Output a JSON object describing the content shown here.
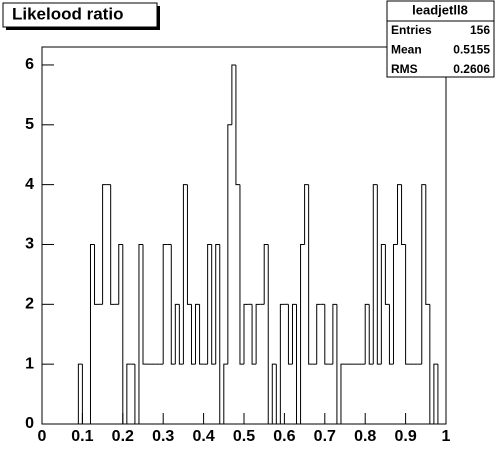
{
  "chart_data": {
    "type": "histogram",
    "title": "Likelood ratio",
    "stats": {
      "name": "leadjetll8",
      "rows": [
        {
          "label": "Entries",
          "value": 156
        },
        {
          "label": "Mean",
          "value": 0.5155
        },
        {
          "label": "RMS",
          "value": 0.2606
        }
      ]
    },
    "bins": [
      0,
      0.01,
      0.02,
      0.03,
      0.04,
      0.05,
      0.06,
      0.07,
      0.08,
      0.09,
      0.1,
      0.11,
      0.12,
      0.13,
      0.14,
      0.15,
      0.16,
      0.17,
      0.18,
      0.19,
      0.2,
      0.21,
      0.22,
      0.23,
      0.24,
      0.25,
      0.26,
      0.27,
      0.28,
      0.29,
      0.3,
      0.31,
      0.32,
      0.33,
      0.34,
      0.35,
      0.36,
      0.37,
      0.38,
      0.39,
      0.4,
      0.41,
      0.42,
      0.43,
      0.44,
      0.45,
      0.46,
      0.47,
      0.48,
      0.49,
      0.5,
      0.51,
      0.52,
      0.53,
      0.54,
      0.55,
      0.56,
      0.57,
      0.58,
      0.59,
      0.6,
      0.61,
      0.62,
      0.63,
      0.64,
      0.65,
      0.66,
      0.67,
      0.68,
      0.69,
      0.7,
      0.71,
      0.72,
      0.73,
      0.74,
      0.75,
      0.76,
      0.77,
      0.78,
      0.79,
      0.8,
      0.81,
      0.82,
      0.83,
      0.84,
      0.85,
      0.86,
      0.87,
      0.88,
      0.89,
      0.9,
      0.91,
      0.92,
      0.93,
      0.94,
      0.95,
      0.96,
      0.97,
      0.98,
      0.99,
      1
    ],
    "values": [
      0,
      0,
      0,
      0,
      0,
      0,
      0,
      0,
      0,
      1,
      0,
      0,
      3,
      2,
      2,
      4,
      4,
      2,
      2,
      3,
      0,
      1,
      1,
      0,
      3,
      1,
      1,
      1,
      1,
      1,
      3,
      3,
      1,
      2,
      1,
      4,
      2,
      1,
      2,
      1,
      1,
      3,
      1,
      3,
      0,
      1,
      5,
      6,
      4,
      1,
      2,
      2,
      1,
      2,
      2,
      3,
      0,
      1,
      0,
      2,
      2,
      1,
      2,
      0,
      3,
      4,
      1,
      1,
      2,
      2,
      1,
      1,
      2,
      0,
      1,
      1,
      1,
      1,
      1,
      1,
      2,
      1,
      4,
      1,
      3,
      2,
      1,
      3,
      4,
      3,
      1,
      1,
      1,
      1,
      4,
      2,
      0,
      1,
      0,
      0
    ],
    "color": "#000000",
    "xlim": [
      0,
      1
    ],
    "xticks": [
      0,
      0.1,
      0.2,
      0.3,
      0.4,
      0.5,
      0.6,
      0.7,
      0.8,
      0.9,
      1
    ],
    "ylim": [
      0,
      6.3
    ],
    "yticks": [
      0,
      1,
      2,
      3,
      4,
      5,
      6
    ]
  }
}
